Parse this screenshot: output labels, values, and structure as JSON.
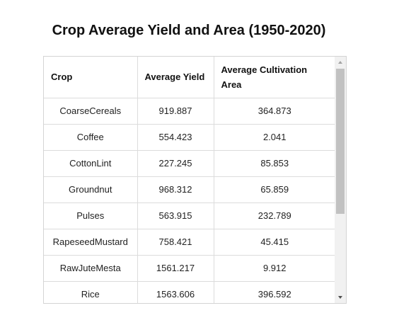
{
  "title": "Crop Average Yield and Area (1950-2020)",
  "table": {
    "headers": {
      "crop": "Crop",
      "yield": "Average Yield",
      "area": "Average Cultivation Area"
    },
    "rows": [
      {
        "crop": "CoarseCereals",
        "yield": "919.887",
        "area": "364.873"
      },
      {
        "crop": "Coffee",
        "yield": "554.423",
        "area": "2.041"
      },
      {
        "crop": "CottonLint",
        "yield": "227.245",
        "area": "85.853"
      },
      {
        "crop": "Groundnut",
        "yield": "968.312",
        "area": "65.859"
      },
      {
        "crop": "Pulses",
        "yield": "563.915",
        "area": "232.789"
      },
      {
        "crop": "RapeseedMustard",
        "yield": "758.421",
        "area": "45.415"
      },
      {
        "crop": "RawJuteMesta",
        "yield": "1561.217",
        "area": "9.912"
      },
      {
        "crop": "Rice",
        "yield": "1563.606",
        "area": "396.592"
      }
    ]
  },
  "icons": {
    "scroll_up": "arrow-up-icon",
    "scroll_down": "arrow-down-icon"
  },
  "colors": {
    "border": "#d4d4d4",
    "scroll_track": "#f1f1f1",
    "scroll_thumb": "#c1c1c1"
  }
}
